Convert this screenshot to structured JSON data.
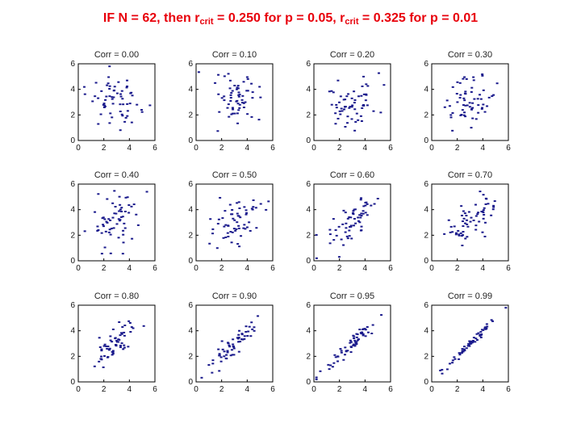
{
  "headline": {
    "prefix": "IF N = 62, then r",
    "sub1": "crit",
    "mid": " = 0.250  for p = 0.05, r",
    "sub2": "crit",
    "suffix": " = 0.325  for p = 0.01",
    "color": "#e8000b"
  },
  "chart_data": {
    "type": "scatter",
    "layout": "3x4 small multiples",
    "n_points": 62,
    "xlim": [
      0,
      6
    ],
    "ylim": [
      0,
      6
    ],
    "xticks": [
      0,
      2,
      4,
      6
    ],
    "yticks": [
      0,
      2,
      4,
      6
    ],
    "x_mean": 3,
    "y_mean": 3,
    "spread_sd": 1,
    "marker_color": "#1a1a8c",
    "panels": [
      {
        "title": "Corr = 0.00",
        "r": 0.0
      },
      {
        "title": "Corr = 0.10",
        "r": 0.1
      },
      {
        "title": "Corr = 0.20",
        "r": 0.2
      },
      {
        "title": "Corr = 0.30",
        "r": 0.3
      },
      {
        "title": "Corr = 0.40",
        "r": 0.4
      },
      {
        "title": "Corr = 0.50",
        "r": 0.5
      },
      {
        "title": "Corr = 0.60",
        "r": 0.6
      },
      {
        "title": "Corr = 0.70",
        "r": 0.7
      },
      {
        "title": "Corr = 0.80",
        "r": 0.8
      },
      {
        "title": "Corr = 0.90",
        "r": 0.9
      },
      {
        "title": "Corr = 0.95",
        "r": 0.95
      },
      {
        "title": "Corr = 0.99",
        "r": 0.99
      }
    ]
  }
}
